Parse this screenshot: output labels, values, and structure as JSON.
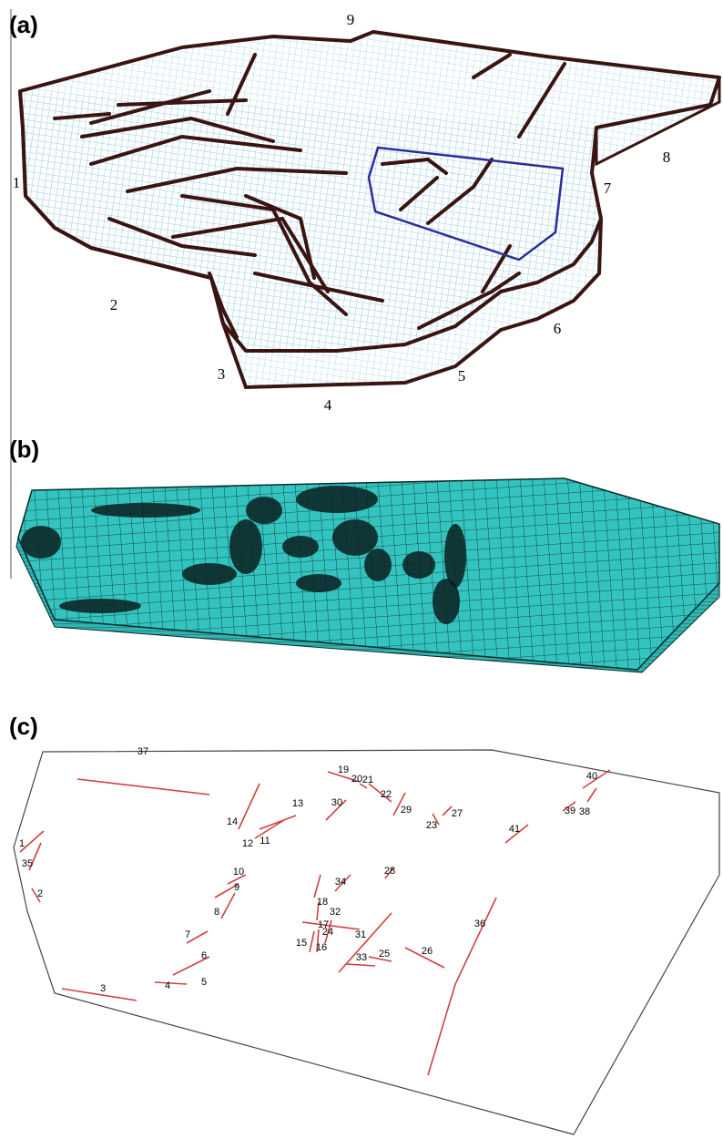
{
  "panels": [
    {
      "label": "(a)",
      "boundary_labels": [
        "1",
        "2",
        "3",
        "4",
        "5",
        "6",
        "7",
        "8",
        "9"
      ]
    },
    {
      "label": "(b)"
    },
    {
      "label": "(c)",
      "fault_labels": [
        "1",
        "2",
        "3",
        "4",
        "5",
        "6",
        "7",
        "8",
        "9",
        "10",
        "11",
        "12",
        "13",
        "14",
        "15",
        "16",
        "17",
        "18",
        "19",
        "20",
        "21",
        "22",
        "23",
        "24",
        "25",
        "26",
        "27",
        "28",
        "29",
        "30",
        "31",
        "32",
        "33",
        "34",
        "35",
        "36",
        "37",
        "38",
        "39",
        "40",
        "41"
      ]
    }
  ]
}
